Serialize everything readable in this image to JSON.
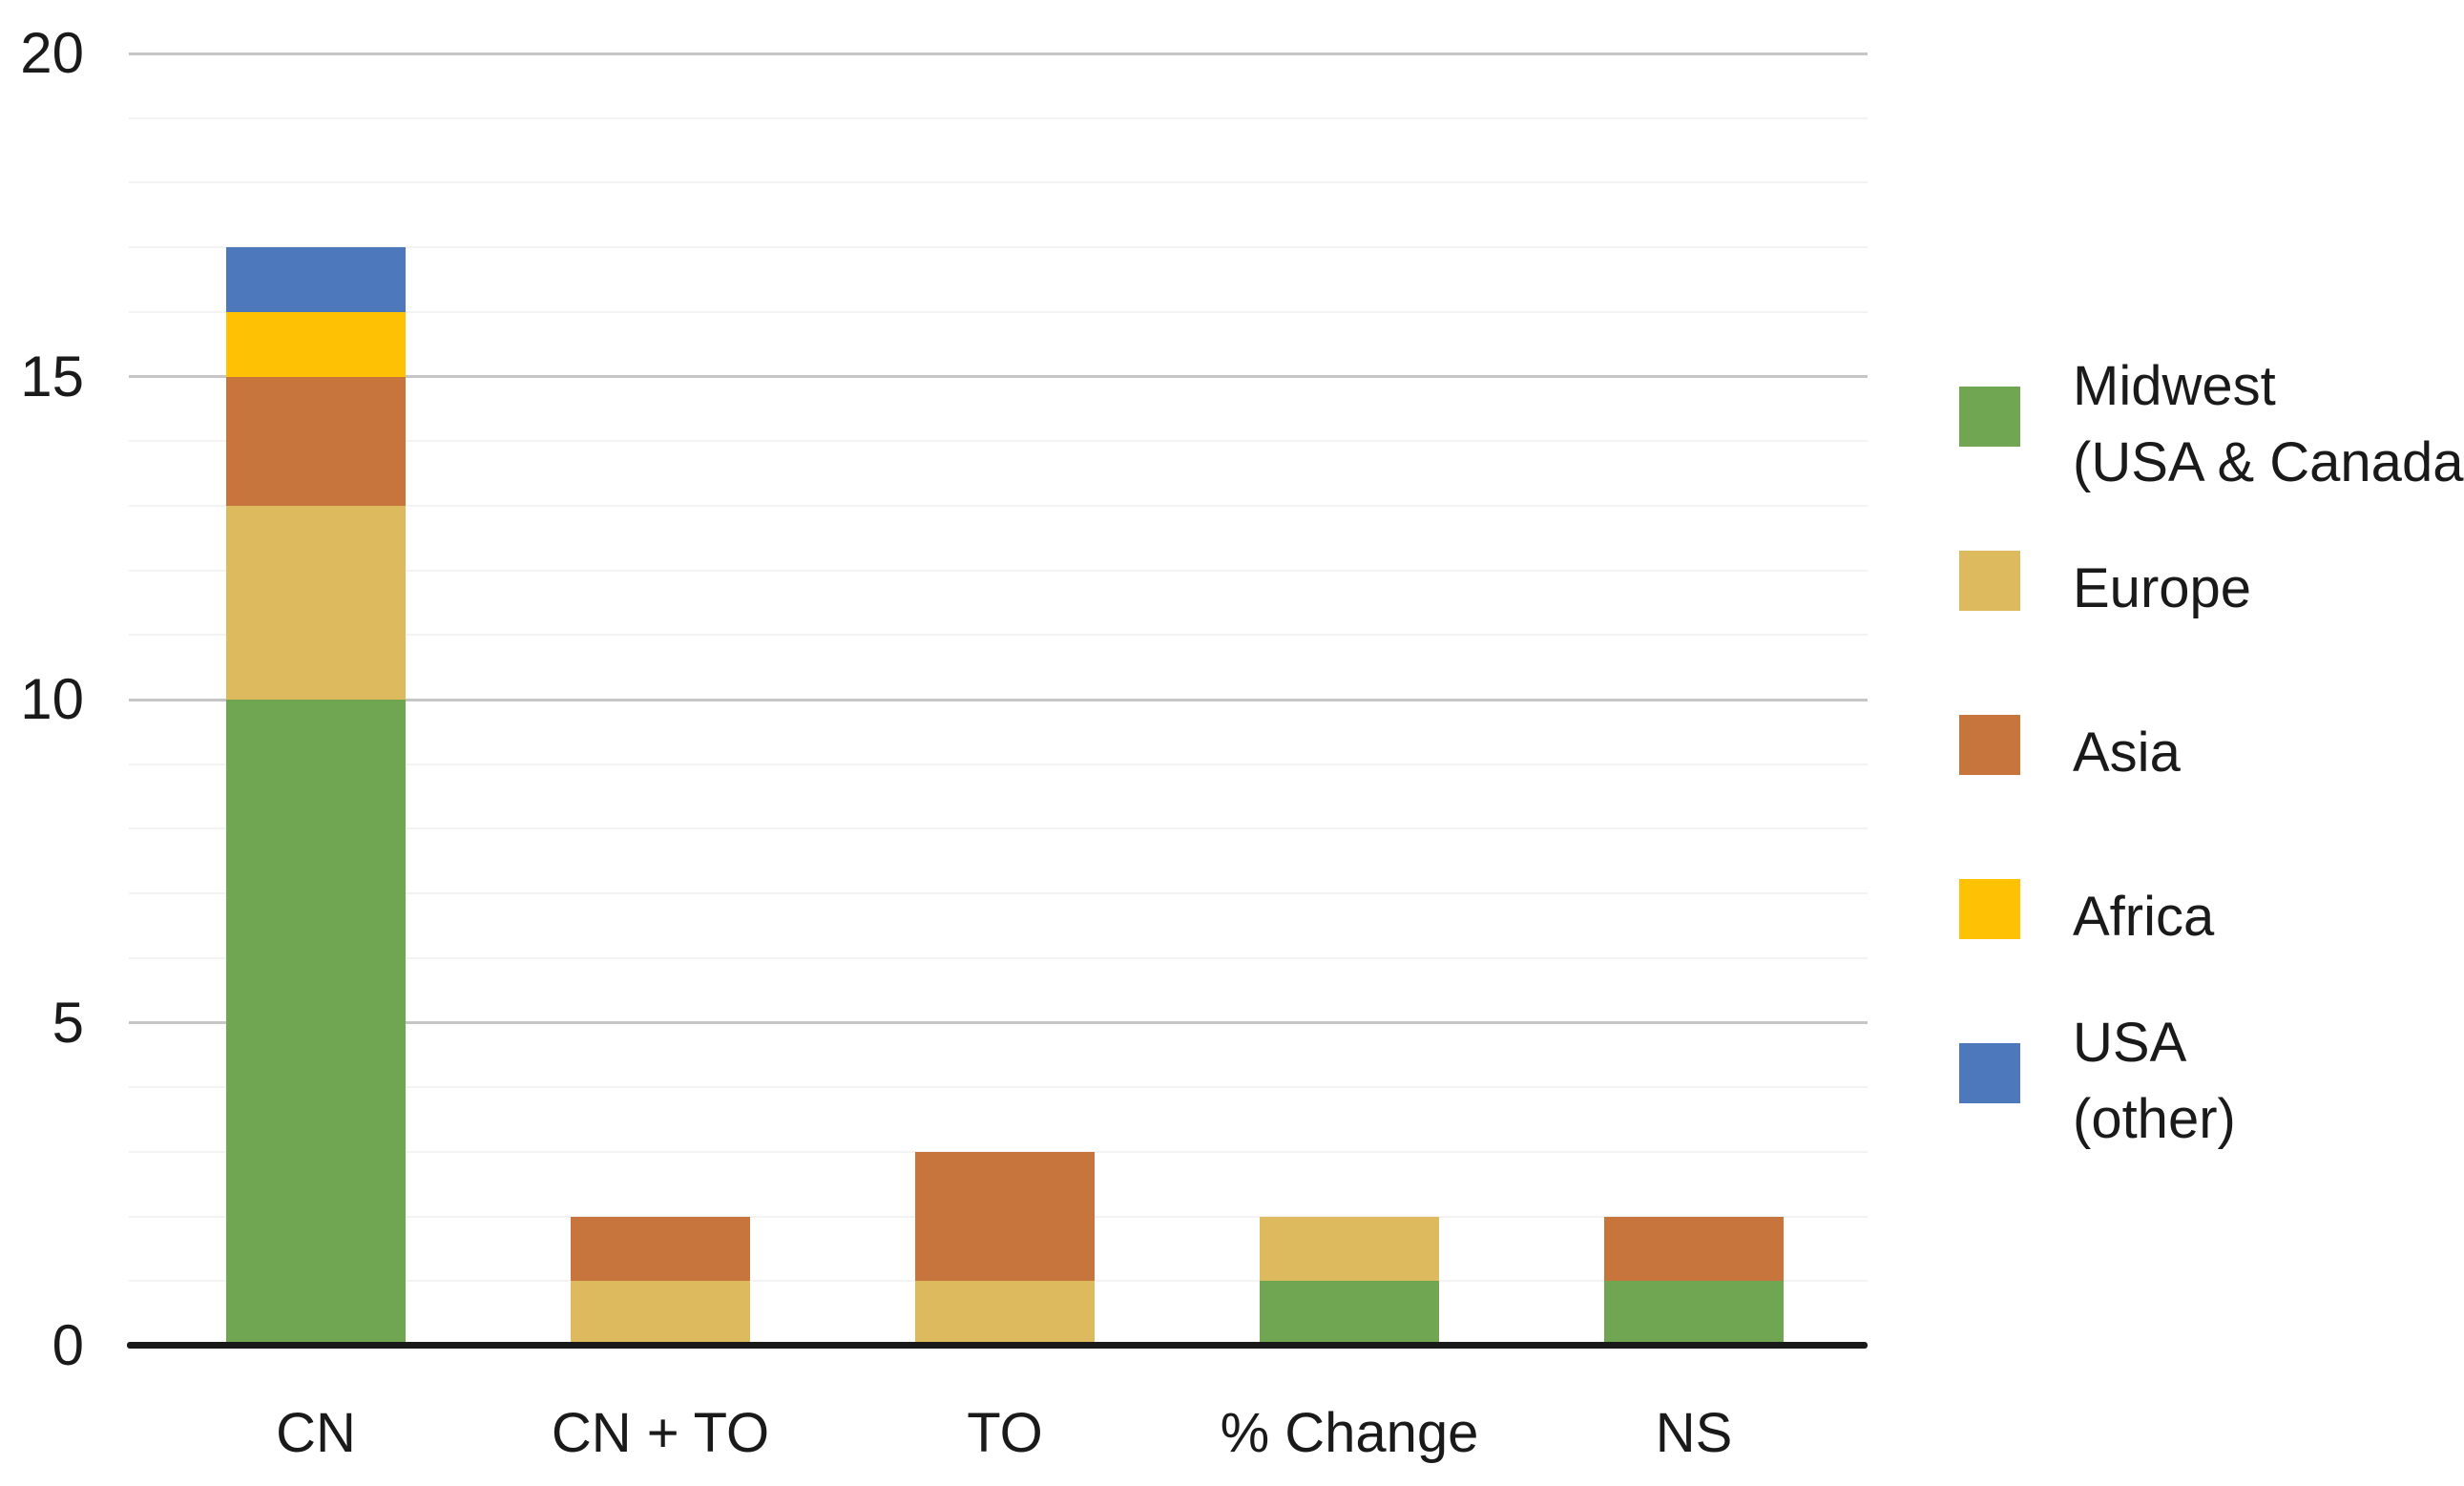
{
  "chart_data": {
    "type": "bar",
    "stacked": true,
    "title": "",
    "xlabel": "",
    "ylabel": "",
    "categories": [
      "CN",
      "CN + TO",
      "TO",
      "% Change",
      "NS"
    ],
    "series": [
      {
        "name": "Midwest (USA & Canada)",
        "legend_lines": [
          "Midwest",
          "(USA & Canada)"
        ],
        "color": "#70A551",
        "values": [
          10,
          0,
          0,
          1,
          1
        ]
      },
      {
        "name": "Europe",
        "legend_lines": [
          "Europe"
        ],
        "color": "#DDBA5E",
        "values": [
          3,
          1,
          1,
          1,
          0
        ]
      },
      {
        "name": "Asia",
        "legend_lines": [
          "Asia"
        ],
        "color": "#C7753D",
        "values": [
          2,
          1,
          2,
          0,
          1
        ]
      },
      {
        "name": "Africa",
        "legend_lines": [
          "Africa"
        ],
        "color": "#FFC103",
        "values": [
          1,
          0,
          0,
          0,
          0
        ]
      },
      {
        "name": "USA (other)",
        "legend_lines": [
          "USA",
          "(other)"
        ],
        "color": "#4D78BC",
        "values": [
          1,
          0,
          0,
          0,
          0
        ]
      }
    ],
    "totals_by_category": [
      17,
      2,
      3,
      2,
      2
    ],
    "ylim": [
      0,
      20
    ],
    "yticks": [
      0,
      5,
      10,
      15,
      20
    ],
    "y_minor_unit": 1,
    "grid": true,
    "legend_position": "right"
  },
  "colors": {
    "axis_line": "#1A1A1A",
    "grid_major": "#C6C6C6",
    "grid_minor": "#F3F3F3",
    "text": "#1A1A1A",
    "background": "#FFFFFF"
  }
}
